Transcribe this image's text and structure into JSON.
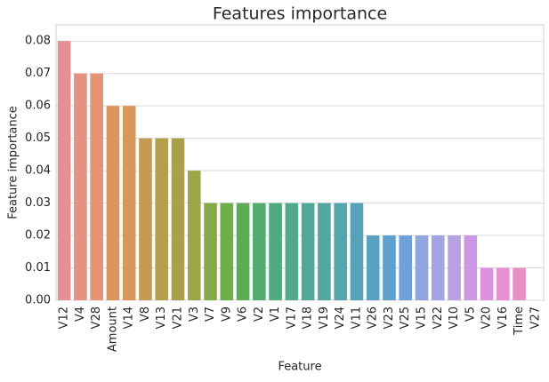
{
  "chart_data": {
    "type": "bar",
    "title": "Features importance",
    "x_label": "Feature",
    "y_label": "Feature importance",
    "categories": [
      "V12",
      "V4",
      "V28",
      "Amount",
      "V14",
      "V8",
      "V13",
      "V21",
      "V3",
      "V7",
      "V9",
      "V6",
      "V2",
      "V1",
      "V17",
      "V18",
      "V19",
      "V24",
      "V11",
      "V26",
      "V23",
      "V25",
      "V15",
      "V22",
      "V10",
      "V5",
      "V20",
      "V16",
      "Time",
      "V27"
    ],
    "values": [
      0.08,
      0.07,
      0.07,
      0.06,
      0.06,
      0.05,
      0.05,
      0.05,
      0.04,
      0.03,
      0.03,
      0.03,
      0.03,
      0.03,
      0.03,
      0.03,
      0.03,
      0.03,
      0.03,
      0.02,
      0.02,
      0.02,
      0.02,
      0.02,
      0.02,
      0.02,
      0.01,
      0.01,
      0.01,
      0
    ],
    "colors": [
      "#e58f97",
      "#e59183",
      "#e39474",
      "#dc9560",
      "#d6995b",
      "#c39b52",
      "#b39f4c",
      "#a8a14a",
      "#9aa648",
      "#86aa47",
      "#6daf48",
      "#5aad55",
      "#53ab6f",
      "#52aa80",
      "#52a98c",
      "#52a898",
      "#53a7a2",
      "#54a5ad",
      "#56a3b7",
      "#59a2c1",
      "#5ea1cd",
      "#70a0d9",
      "#8ea5df",
      "#a3a5e3",
      "#b8a0e4",
      "#cc98e4",
      "#dd8fe0",
      "#e68fd1",
      "#e691c2",
      "#e694b0"
    ],
    "ylim": [
      0,
      0.085
    ],
    "yticks": [
      {
        "value": 0,
        "label": "0.00"
      },
      0.01,
      0.02,
      0.03,
      0.04,
      0.05,
      0.06,
      0.07,
      0.08
    ],
    "grid": true
  }
}
